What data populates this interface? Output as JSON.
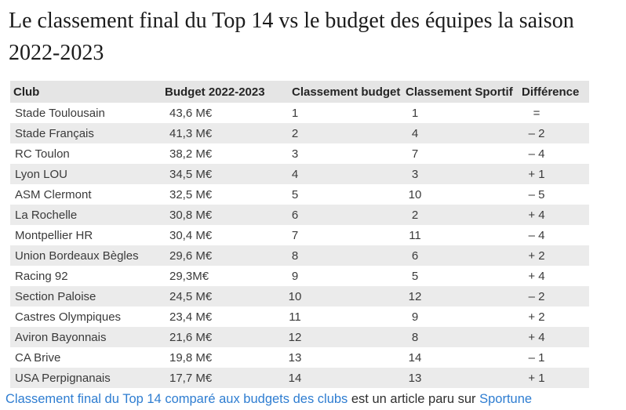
{
  "title": "Le classement final du Top 14 vs le budget des équipes la saison 2022-2023",
  "table": {
    "columns": [
      "Club",
      "Budget 2022-2023",
      "Classement budget",
      "Classement Sportif",
      "Différence"
    ],
    "rows": [
      {
        "club": "Stade Toulousain",
        "budget": "43,6 M€",
        "rank_budget": "1",
        "rank_sport": "1",
        "diff": "="
      },
      {
        "club": "Stade Français",
        "budget": "41,3 M€",
        "rank_budget": "2",
        "rank_sport": "4",
        "diff": "– 2"
      },
      {
        "club": "RC Toulon",
        "budget": "38,2 M€",
        "rank_budget": "3",
        "rank_sport": "7",
        "diff": "– 4"
      },
      {
        "club": "Lyon LOU",
        "budget": "34,5 M€",
        "rank_budget": "4",
        "rank_sport": "3",
        "diff": "+ 1"
      },
      {
        "club": "ASM Clermont",
        "budget": "32,5 M€",
        "rank_budget": "5",
        "rank_sport": "10",
        "diff": "– 5"
      },
      {
        "club": "La Rochelle",
        "budget": "30,8 M€",
        "rank_budget": "6",
        "rank_sport": "2",
        "diff": "+ 4"
      },
      {
        "club": "Montpellier HR",
        "budget": "30,4 M€",
        "rank_budget": "7",
        "rank_sport": "11",
        "diff": "– 4"
      },
      {
        "club": "Union Bordeaux Bègles",
        "budget": "29,6 M€",
        "rank_budget": "8",
        "rank_sport": "6",
        "diff": "+ 2"
      },
      {
        "club": "Racing 92",
        "budget": "29,3M€",
        "rank_budget": "9",
        "rank_sport": "5",
        "diff": "+ 4"
      },
      {
        "club": "Section Paloise",
        "budget": "24,5 M€",
        "rank_budget": "10",
        "rank_sport": "12",
        "diff": "– 2"
      },
      {
        "club": "Castres Olympiques",
        "budget": "23,4 M€",
        "rank_budget": "11",
        "rank_sport": "9",
        "diff": "+ 2"
      },
      {
        "club": "Aviron Bayonnais",
        "budget": "21,6 M€",
        "rank_budget": "12",
        "rank_sport": "8",
        "diff": "+ 4"
      },
      {
        "club": "CA Brive",
        "budget": "19,8 M€",
        "rank_budget": "13",
        "rank_sport": "14",
        "diff": "– 1"
      },
      {
        "club": "USA Perpignanais",
        "budget": "17,7 M€",
        "rank_budget": "14",
        "rank_sport": "13",
        "diff": "+ 1"
      }
    ]
  },
  "footer": {
    "article_link": "Classement final du Top 14 comparé aux budgets des clubs",
    "middle_text": " est un article paru sur ",
    "source_link": "Sportune"
  },
  "colors": {
    "link_blue": "#2e7dd1",
    "stripe_gray": "#ebebeb",
    "header_gray": "#e5e5e5",
    "text_dark": "#3a3a3a"
  }
}
